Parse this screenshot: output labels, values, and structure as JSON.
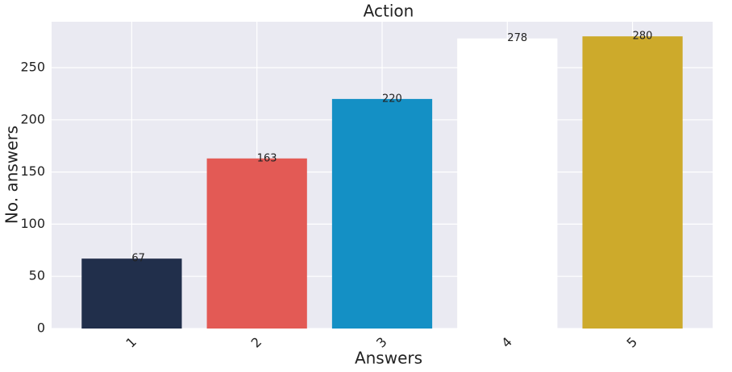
{
  "chart_data": {
    "type": "bar",
    "title": "Action",
    "x_label": "Answers",
    "y_label": "No. answers",
    "categories": [
      "1",
      "2",
      "3",
      "4",
      "5"
    ],
    "values": [
      67,
      163,
      220,
      278,
      280
    ],
    "colors": [
      "#212f4b",
      "#e35a55",
      "#1490c5",
      "#ffffff",
      "#cdaa2b"
    ],
    "ylim": [
      0,
      294
    ],
    "yticks": [
      0,
      50,
      100,
      150,
      200,
      250
    ],
    "grid": true
  }
}
